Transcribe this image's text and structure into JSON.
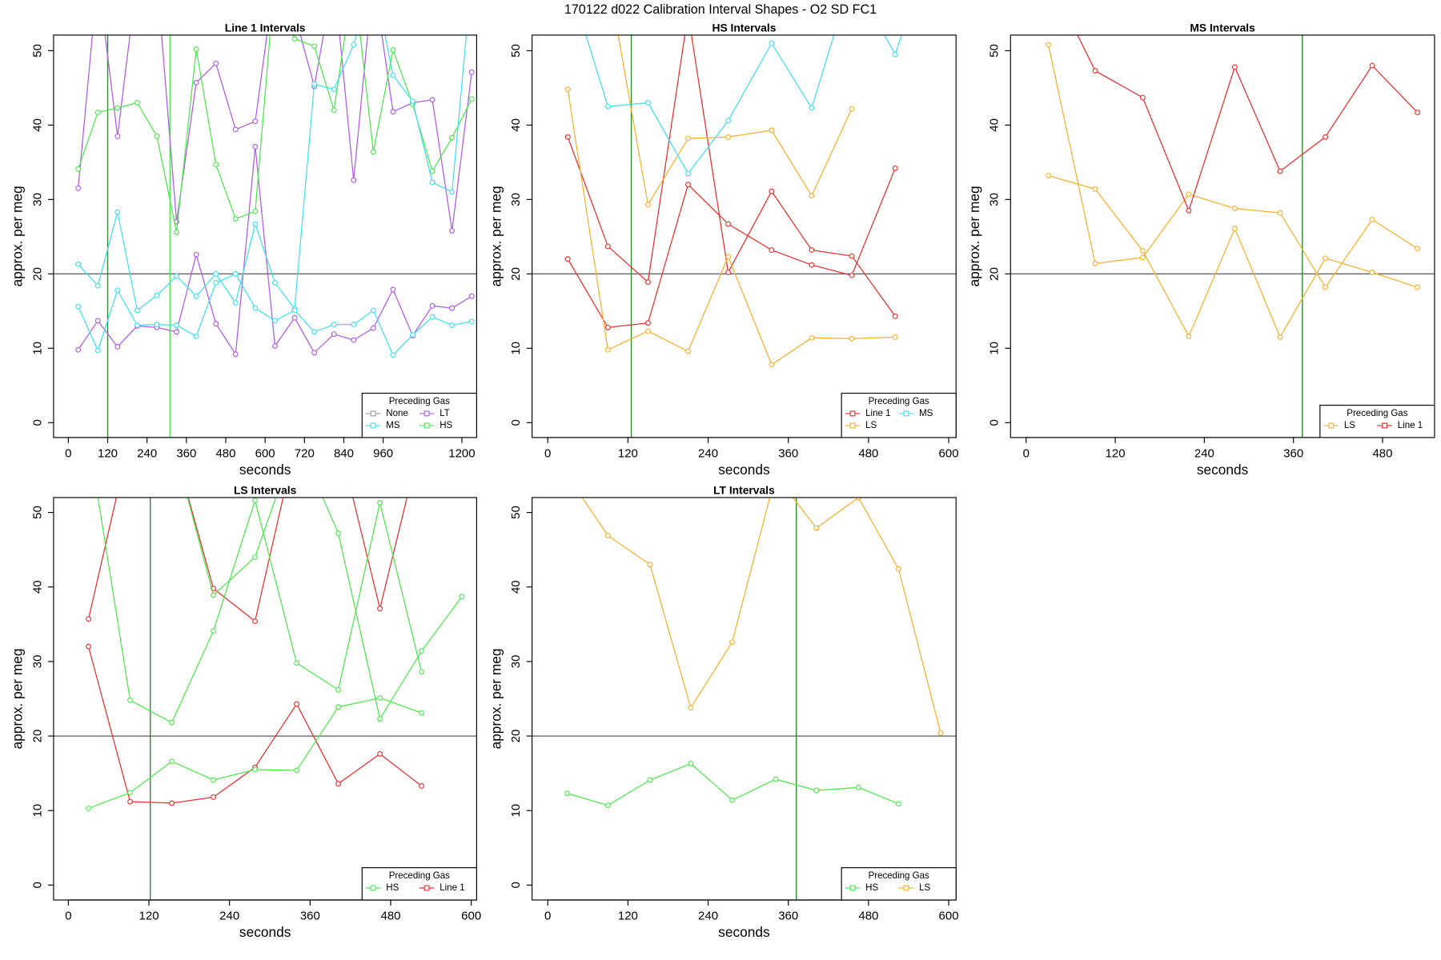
{
  "title": "170122   d022   Calibration Interval Shapes - O2 SD FC1",
  "chart_data": [
    {
      "type": "line",
      "title": "Line 1 Intervals",
      "xlabel": "seconds",
      "ylabel": "approx. per meg",
      "xlim": [
        -45,
        1245
      ],
      "ylim": [
        -2,
        52.1
      ],
      "xticks": [
        0,
        120,
        240,
        360,
        480,
        600,
        720,
        840,
        960,
        1200
      ],
      "yticks": [
        0,
        10,
        20,
        30,
        40,
        50
      ],
      "hline": 20,
      "vlines": [
        {
          "value": 120,
          "color": "#2e8b2e"
        },
        {
          "value": 310,
          "color": "#4de84d"
        }
      ],
      "legend": {
        "title": "Preceding Gas",
        "corner": "bottom-right",
        "entries": [
          {
            "name": "None",
            "color": "#999999"
          },
          {
            "name": "MS",
            "color": "#40e0f0"
          },
          {
            "name": "LT",
            "color": "#b05be8"
          },
          {
            "name": "HS",
            "color": "#4de84d"
          }
        ]
      },
      "series": [
        {
          "color": "#b05be8",
          "x": [
            30,
            90,
            150,
            210,
            270,
            330,
            390,
            450,
            510,
            570,
            630,
            690,
            750,
            810,
            870,
            930,
            990,
            1050,
            1110,
            1170,
            1230
          ],
          "values": [
            31.5,
            60,
            38.5,
            60,
            60,
            27,
            45.7,
            48.3,
            39.4,
            40.5,
            60,
            55,
            45.2,
            60,
            32.6,
            60,
            41.8,
            43.0,
            43.4,
            25.8,
            47.1
          ]
        },
        {
          "color": "#b05be8",
          "x": [
            30,
            90,
            150,
            210,
            270,
            330,
            390,
            450,
            510,
            570,
            630,
            690,
            750,
            810,
            870,
            930,
            990,
            1050,
            1110,
            1170,
            1230
          ],
          "values": [
            9.8,
            13.7,
            10.2,
            13.0,
            12.8,
            12.2,
            22.6,
            13.3,
            9.2,
            37.1,
            10.3,
            14.1,
            9.4,
            11.9,
            11.1,
            12.7,
            17.9,
            11.7,
            15.7,
            15.4,
            17.0
          ]
        },
        {
          "color": "#4de84d",
          "x": [
            30,
            90,
            150,
            210,
            270,
            330,
            390,
            450,
            510,
            570,
            630,
            690,
            750,
            810,
            870,
            930,
            990,
            1050,
            1110,
            1170,
            1230
          ],
          "values": [
            34.1,
            41.7,
            42.3,
            43.0,
            38.5,
            25.6,
            50.2,
            34.7,
            27.4,
            28.4,
            60,
            51.6,
            50.6,
            42.0,
            60,
            36.4,
            50.1,
            42.8,
            33.8,
            38.3,
            43.5
          ]
        },
        {
          "color": "#40e0f0",
          "x": [
            30,
            90,
            150,
            210,
            270,
            330,
            390,
            450,
            510,
            570,
            630,
            690,
            750,
            810,
            870,
            930,
            990,
            1050,
            1110,
            1170,
            1230
          ],
          "values": [
            21.3,
            18.4,
            28.3,
            15.1,
            17.1,
            19.7,
            17.0,
            20.0,
            16.1,
            26.7,
            18.8,
            15.3,
            45.5,
            44.8,
            50.8,
            60,
            46.7,
            43.2,
            32.3,
            31.0,
            60
          ]
        },
        {
          "color": "#40e0f0",
          "x": [
            30,
            90,
            150,
            210,
            270,
            330,
            390,
            450,
            510,
            570,
            630,
            690,
            750,
            810,
            870,
            930,
            990,
            1050,
            1110,
            1170,
            1230
          ],
          "values": [
            15.6,
            9.7,
            17.8,
            13.1,
            13.2,
            13.1,
            11.6,
            18.8,
            20.0,
            15.4,
            13.7,
            15.1,
            12.2,
            13.2,
            13.2,
            15.1,
            9.1,
            11.8,
            14.2,
            13.1,
            13.6
          ]
        }
      ]
    },
    {
      "type": "line",
      "title": "HS Intervals",
      "xlabel": "seconds",
      "ylabel": "approx. per meg",
      "xlim": [
        -23.5,
        611
      ],
      "ylim": [
        -2,
        52.1
      ],
      "xticks": [
        0,
        120,
        240,
        360,
        480,
        600
      ],
      "yticks": [
        0,
        10,
        20,
        30,
        40,
        50
      ],
      "hline": 20,
      "vlines": [
        {
          "value": 125,
          "color": "#2e8b2e"
        }
      ],
      "legend": {
        "title": "Preceding Gas",
        "corner": "bottom-right",
        "entries": [
          {
            "name": "Line 1",
            "color": "#e83030"
          },
          {
            "name": "LS",
            "color": "#f5b030"
          },
          {
            "name": "MS",
            "color": "#40e0f0"
          }
        ]
      },
      "series": [
        {
          "color": "#e83030",
          "x": [
            30,
            90,
            150,
            210,
            270,
            335,
            395,
            455,
            520
          ],
          "values": [
            38.4,
            23.7,
            18.9,
            55,
            20.2,
            31.1,
            23.2,
            22.4,
            14.3
          ]
        },
        {
          "color": "#e83030",
          "x": [
            30,
            90,
            150,
            210,
            270,
            335,
            395,
            455,
            520
          ],
          "values": [
            22.0,
            12.8,
            13.4,
            32.0,
            26.7,
            23.2,
            21.2,
            19.8,
            34.2
          ]
        },
        {
          "color": "#f5b030",
          "x": [
            30,
            90,
            150,
            210,
            270,
            335,
            395,
            455,
            520
          ],
          "values": [
            44.8,
            9.8,
            12.3,
            9.6,
            22.3,
            7.8,
            11.4,
            11.3,
            11.5
          ]
        },
        {
          "color": "#f5b030",
          "x": [
            90,
            150,
            210,
            270,
            335,
            395,
            455
          ],
          "values": [
            60,
            29.3,
            38.2,
            38.4,
            39.3,
            30.5,
            42.2
          ]
        },
        {
          "color": "#40e0f0",
          "x": [
            30,
            90,
            150,
            210,
            270,
            335,
            395,
            455,
            520,
            540
          ],
          "values": [
            60,
            42.5,
            43.0,
            33.5,
            40.6,
            51.0,
            42.3,
            60,
            49.5,
            55
          ]
        }
      ]
    },
    {
      "type": "line",
      "title": "MS Intervals",
      "xlabel": "seconds",
      "ylabel": "approx. per meg",
      "xlim": [
        -21,
        550
      ],
      "ylim": [
        -2,
        52.1
      ],
      "xticks": [
        0,
        120,
        240,
        360,
        480
      ],
      "yticks": [
        0,
        10,
        20,
        30,
        40,
        50
      ],
      "hline": 20,
      "vlines": [
        {
          "value": 372,
          "color": "#2e8b2e"
        }
      ],
      "legend": {
        "title": "Preceding Gas",
        "corner": "bottom-right",
        "entries": [
          {
            "name": "LS",
            "color": "#f5b030"
          },
          {
            "name": "Line 1",
            "color": "#e83030"
          }
        ]
      },
      "series": [
        {
          "color": "#f5b030",
          "x": [
            30,
            93,
            157,
            219,
            281,
            342,
            403,
            466,
            527
          ],
          "values": [
            50.8,
            21.4,
            22.2,
            30.7,
            28.8,
            28.2,
            18.2,
            27.3,
            23.4
          ]
        },
        {
          "color": "#f5b030",
          "x": [
            30,
            93,
            157,
            219,
            281,
            342,
            403,
            466,
            527
          ],
          "values": [
            33.2,
            31.4,
            23.1,
            11.6,
            26.1,
            11.5,
            22.1,
            20.2,
            18.2
          ]
        },
        {
          "color": "#e83030",
          "x": [
            30,
            93,
            157,
            219,
            281,
            342,
            403,
            466,
            527
          ],
          "values": [
            60,
            47.3,
            43.7,
            28.5,
            47.8,
            33.8,
            38.4,
            48.0,
            41.7
          ]
        }
      ]
    },
    {
      "type": "line",
      "title": "LS Intervals",
      "xlabel": "seconds",
      "ylabel": "approx. per meg",
      "xlim": [
        -22,
        608
      ],
      "ylim": [
        -2,
        52
      ],
      "xticks": [
        0,
        120,
        240,
        360,
        480,
        600
      ],
      "yticks": [
        0,
        10,
        20,
        30,
        40,
        50
      ],
      "hline": 20,
      "vlines": [
        {
          "value": 122,
          "color": "#2e8b2e"
        }
      ],
      "legend": {
        "title": "Preceding Gas",
        "corner": "bottom-right",
        "entries": [
          {
            "name": "HS",
            "color": "#4de84d"
          },
          {
            "name": "Line 1",
            "color": "#e83030"
          }
        ]
      },
      "series": [
        {
          "color": "#e83030",
          "x": [
            30,
            92,
            154,
            216,
            278,
            340,
            402,
            464,
            526
          ],
          "values": [
            35.7,
            60,
            60,
            39.8,
            35.4,
            60,
            60,
            37.1,
            60
          ]
        },
        {
          "color": "#e83030",
          "x": [
            30,
            92,
            154,
            216,
            278,
            340,
            402,
            464,
            526
          ],
          "values": [
            32.0,
            11.2,
            11.0,
            11.8,
            15.8,
            24.3,
            13.6,
            17.6,
            13.3
          ]
        },
        {
          "color": "#4de84d",
          "x": [
            30,
            92,
            154,
            216,
            278,
            340,
            402,
            464,
            526
          ],
          "values": [
            60,
            24.8,
            21.8,
            34.1,
            51.6,
            29.8,
            26.2,
            51.3,
            28.6
          ]
        },
        {
          "color": "#4de84d",
          "x": [
            30,
            92,
            154,
            216,
            278,
            340,
            402,
            464,
            526
          ],
          "values": [
            10.3,
            12.4,
            16.6,
            14.1,
            15.5,
            15.4,
            23.9,
            25.1,
            23.1
          ]
        },
        {
          "color": "#4de84d",
          "x": [
            154,
            216,
            278,
            340,
            402,
            464,
            526,
            586
          ],
          "values": [
            60,
            38.9,
            44.0,
            60,
            47.2,
            22.3,
            31.4,
            38.7
          ]
        }
      ]
    },
    {
      "type": "line",
      "title": "LT Intervals",
      "xlabel": "seconds",
      "ylabel": "approx. per meg",
      "xlim": [
        -23.5,
        611
      ],
      "ylim": [
        -2,
        52
      ],
      "xticks": [
        0,
        120,
        240,
        360,
        480,
        600
      ],
      "yticks": [
        0,
        10,
        20,
        30,
        40,
        50
      ],
      "hline": 20,
      "vlines": [
        {
          "value": 372,
          "color": "#2e8b2e"
        }
      ],
      "legend": {
        "title": "Preceding Gas",
        "corner": "bottom-right",
        "entries": [
          {
            "name": "HS",
            "color": "#4de84d"
          },
          {
            "name": "LS",
            "color": "#f5b030"
          }
        ]
      },
      "series": [
        {
          "color": "#f5b030",
          "x": [
            29,
            90,
            153,
            214,
            276,
            341,
            402,
            465,
            525,
            588
          ],
          "values": [
            55,
            46.9,
            43.0,
            23.8,
            32.6,
            55,
            47.9,
            52,
            42.4,
            20.4
          ]
        },
        {
          "color": "#4de84d",
          "x": [
            29,
            90,
            153,
            214,
            276,
            341,
            402,
            465,
            525
          ],
          "values": [
            12.3,
            10.7,
            14.1,
            16.3,
            11.4,
            14.2,
            12.7,
            13.1,
            10.9
          ]
        }
      ]
    }
  ]
}
